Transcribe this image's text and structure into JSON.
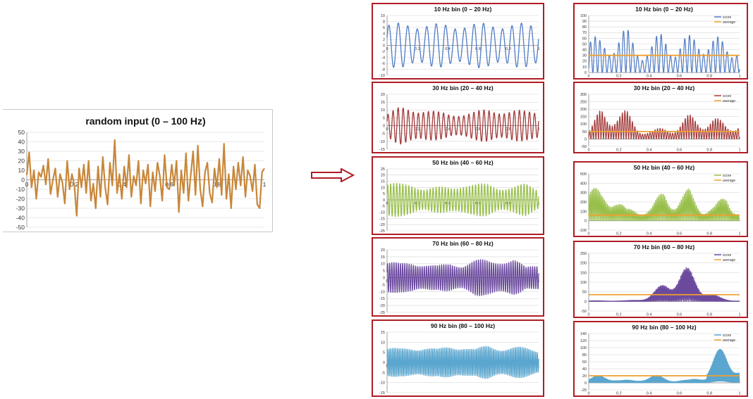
{
  "arrow": {
    "color": "#b01c24"
  },
  "chart_data": [
    {
      "id": "main",
      "type": "line",
      "title": "random input (0 – 100 Hz)",
      "xlim": [
        0,
        1
      ],
      "ylim": [
        -50,
        50
      ],
      "yticks": [
        50,
        40,
        30,
        20,
        10,
        0,
        -10,
        -20,
        -30,
        -40,
        -50
      ],
      "xticks": [
        "0",
        "0.2",
        "0.4",
        "0.6",
        "0.8",
        "1"
      ],
      "grid": true,
      "series": [
        {
          "color": "#c8873a",
          "x": [
            0,
            0.01,
            0.02,
            0.03,
            0.04,
            0.05,
            0.06,
            0.07,
            0.08,
            0.09,
            0.1,
            0.11,
            0.12,
            0.13,
            0.14,
            0.15,
            0.16,
            0.17,
            0.18,
            0.19,
            0.2,
            0.21,
            0.22,
            0.23,
            0.24,
            0.25,
            0.26,
            0.27,
            0.28,
            0.29,
            0.3,
            0.31,
            0.32,
            0.33,
            0.34,
            0.35,
            0.36,
            0.37,
            0.38,
            0.39,
            0.4,
            0.41,
            0.42,
            0.43,
            0.44,
            0.45,
            0.46,
            0.47,
            0.48,
            0.49,
            0.5,
            0.51,
            0.52,
            0.53,
            0.54,
            0.55,
            0.56,
            0.57,
            0.58,
            0.59,
            0.6,
            0.61,
            0.62,
            0.63,
            0.64,
            0.65,
            0.66,
            0.67,
            0.68,
            0.69,
            0.7,
            0.71,
            0.72,
            0.73,
            0.74,
            0.75,
            0.76,
            0.77,
            0.78,
            0.79,
            0.8,
            0.81,
            0.82,
            0.83,
            0.84,
            0.85,
            0.86,
            0.87,
            0.88,
            0.89,
            0.9,
            0.91,
            0.92,
            0.93,
            0.94,
            0.95,
            0.96,
            0.97,
            0.98,
            0.99,
            1
          ],
          "y": [
            5,
            29,
            -8,
            10,
            -20,
            8,
            3,
            15,
            -5,
            22,
            -15,
            0,
            12,
            -18,
            6,
            -3,
            -25,
            20,
            -10,
            6,
            -5,
            -38,
            12,
            -8,
            16,
            -14,
            20,
            -22,
            -4,
            -30,
            14,
            -18,
            24,
            -8,
            -26,
            18,
            -6,
            42,
            -14,
            6,
            -20,
            14,
            -8,
            26,
            -18,
            4,
            -6,
            20,
            -25,
            10,
            -4,
            16,
            -28,
            8,
            -12,
            18,
            4,
            -22,
            26,
            -8,
            -10,
            16,
            -6,
            20,
            -34,
            10,
            -14,
            28,
            -22,
            5,
            30,
            -16,
            36,
            -10,
            -28,
            8,
            18,
            -14,
            -24,
            12,
            -8,
            22,
            -16,
            38,
            -20,
            6,
            -30,
            14,
            -10,
            18,
            -6,
            24,
            -18,
            10,
            4,
            -12,
            16,
            -26,
            -30,
            8,
            12
          ]
        }
      ]
    },
    {
      "id": "b10",
      "type": "line",
      "title": "10 Hz bin (0 – 20 Hz)",
      "xlim": [
        0,
        1
      ],
      "ylim": [
        -10,
        10
      ],
      "yticks": [
        10,
        8,
        6,
        4,
        2,
        0,
        -2,
        -4,
        -6,
        -8,
        -10
      ],
      "xticks": [
        "0",
        "0.2",
        "0.4",
        "0.6",
        "0.8",
        "1"
      ],
      "series": [
        {
          "color": "#4f7bc4",
          "freq": 16,
          "amp": 8,
          "mod": 0.15
        }
      ]
    },
    {
      "id": "b30",
      "type": "line",
      "title": "30 Hz bin (20 – 40 Hz)",
      "xlim": [
        0,
        1
      ],
      "ylim": [
        -15,
        20
      ],
      "yticks": [
        20,
        15,
        10,
        5,
        0,
        -5,
        -10,
        -15
      ],
      "xticks": [
        "0",
        "0.2",
        "0.4",
        "0.6",
        "0.8",
        "1"
      ],
      "series": [
        {
          "color": "#a33a3a",
          "freq": 30,
          "amp": 12,
          "mod": 0.55
        }
      ]
    },
    {
      "id": "b50",
      "type": "line",
      "title": "50 Hz bin (40 – 60 Hz)",
      "xlim": [
        0,
        1
      ],
      "ylim": [
        -25,
        25
      ],
      "yticks": [
        25,
        20,
        15,
        10,
        5,
        0,
        -5,
        -10,
        -15,
        -20,
        -25
      ],
      "xticks": [
        "0",
        "0.2",
        "0.4",
        "0.6",
        "0.8",
        "1"
      ],
      "series": [
        {
          "color": "#98bf4a",
          "freq": 50,
          "amp": 15,
          "mod": 0.6
        }
      ]
    },
    {
      "id": "b70",
      "type": "line",
      "title": "70 Hz bin (60 – 80 Hz)",
      "xlim": [
        0,
        1
      ],
      "ylim": [
        -25,
        20
      ],
      "yticks": [
        20,
        15,
        10,
        5,
        0,
        -5,
        -10,
        -15,
        -20,
        -25
      ],
      "xticks": [
        "0",
        "0.2",
        "0.4",
        "0.6",
        "0.8",
        "1"
      ],
      "series": [
        {
          "color": "#6b4a9e",
          "freq": 70,
          "amp": 14,
          "mod": 0.7
        }
      ]
    },
    {
      "id": "b90",
      "type": "line",
      "title": "90 Hz bin (80 – 100 Hz)",
      "xlim": [
        0,
        1
      ],
      "ylim": [
        -15,
        15
      ],
      "yticks": [
        15,
        10,
        5,
        0,
        -5,
        -10,
        -15
      ],
      "xticks": [
        "0",
        "0.2",
        "0.4",
        "0.6",
        "0.8",
        "1"
      ],
      "series": [
        {
          "color": "#5aa6cf",
          "freq": 90,
          "amp": 9,
          "mod": 0.45
        }
      ]
    },
    {
      "id": "s10",
      "type": "line",
      "title": "10 Hz bin (0 – 20 Hz)",
      "xlim": [
        0,
        1
      ],
      "ylim": [
        0,
        100
      ],
      "yticks": [
        100,
        90,
        80,
        70,
        60,
        50,
        40,
        30,
        20,
        10,
        0
      ],
      "xticks": [
        "0",
        "0.2",
        "0.4",
        "0.6",
        "0.8",
        "1"
      ],
      "legend": [
        "score",
        "average"
      ],
      "legend_position": "top-right",
      "average": 30,
      "series": [
        {
          "name": "score",
          "color": "#4f7bc4",
          "freq": 16,
          "amp": 85,
          "mod": 0.35
        },
        {
          "name": "average",
          "color": "#f0a030"
        }
      ]
    },
    {
      "id": "s30",
      "type": "line",
      "title": "30 Hz bin (20 – 40 Hz)",
      "xlim": [
        0,
        1
      ],
      "ylim": [
        -50,
        300
      ],
      "yticks": [
        300,
        250,
        200,
        150,
        100,
        50,
        0,
        -50
      ],
      "xticks": [
        "0",
        "0.2",
        "0.4",
        "0.6",
        "0.8",
        "1"
      ],
      "legend": [
        "score",
        "average"
      ],
      "legend_position": "top-right",
      "average": 50,
      "series": [
        {
          "name": "score",
          "color": "#a33a3a",
          "freq": 30,
          "amp": 230,
          "mod": 0.8
        },
        {
          "name": "average",
          "color": "#f0a030"
        }
      ]
    },
    {
      "id": "s50",
      "type": "line",
      "title": "50 Hz bin (40 – 60 Hz)",
      "xlim": [
        0,
        1
      ],
      "ylim": [
        -100,
        500
      ],
      "yticks": [
        500,
        400,
        300,
        200,
        100,
        0,
        -100
      ],
      "xticks": [
        "0",
        "0.2",
        "0.4",
        "0.6",
        "0.8",
        "1"
      ],
      "legend": [
        "score",
        "average"
      ],
      "legend_position": "top-right",
      "average": 60,
      "series": [
        {
          "name": "score",
          "color": "#98bf4a",
          "freq": 50,
          "amp": 450,
          "mod": 0.85
        },
        {
          "name": "average",
          "color": "#f0a030"
        }
      ]
    },
    {
      "id": "s70",
      "type": "line",
      "title": "70 Hz bin (60 – 80 Hz)",
      "xlim": [
        0,
        1
      ],
      "ylim": [
        -50,
        250
      ],
      "yticks": [
        250,
        200,
        150,
        100,
        50,
        0,
        -50
      ],
      "xticks": [
        "0",
        "0.2",
        "0.4",
        "0.6",
        "0.8",
        "1"
      ],
      "legend": [
        "score",
        "average"
      ],
      "legend_position": "top-right",
      "average": 35,
      "series": [
        {
          "name": "score",
          "color": "#6b4a9e",
          "freq": 70,
          "amp": 185,
          "mod": 0.9,
          "envelope": "bump"
        },
        {
          "name": "average",
          "color": "#f0a030"
        }
      ]
    },
    {
      "id": "s90",
      "type": "line",
      "title": "90 Hz bin (80 – 100 Hz)",
      "xlim": [
        0,
        1
      ],
      "ylim": [
        -20,
        140
      ],
      "yticks": [
        140,
        120,
        100,
        80,
        60,
        40,
        20,
        0,
        -20
      ],
      "xticks": [
        "0",
        "0.2",
        "0.4",
        "0.6",
        "0.8",
        "1"
      ],
      "legend": [
        "score",
        "average"
      ],
      "legend_position": "top-right",
      "average": 20,
      "series": [
        {
          "name": "score",
          "color": "#5aa6cf",
          "freq": 90,
          "amp": 100,
          "mod": 0.8,
          "envelope": "rise"
        },
        {
          "name": "average",
          "color": "#f0a030"
        }
      ]
    }
  ]
}
